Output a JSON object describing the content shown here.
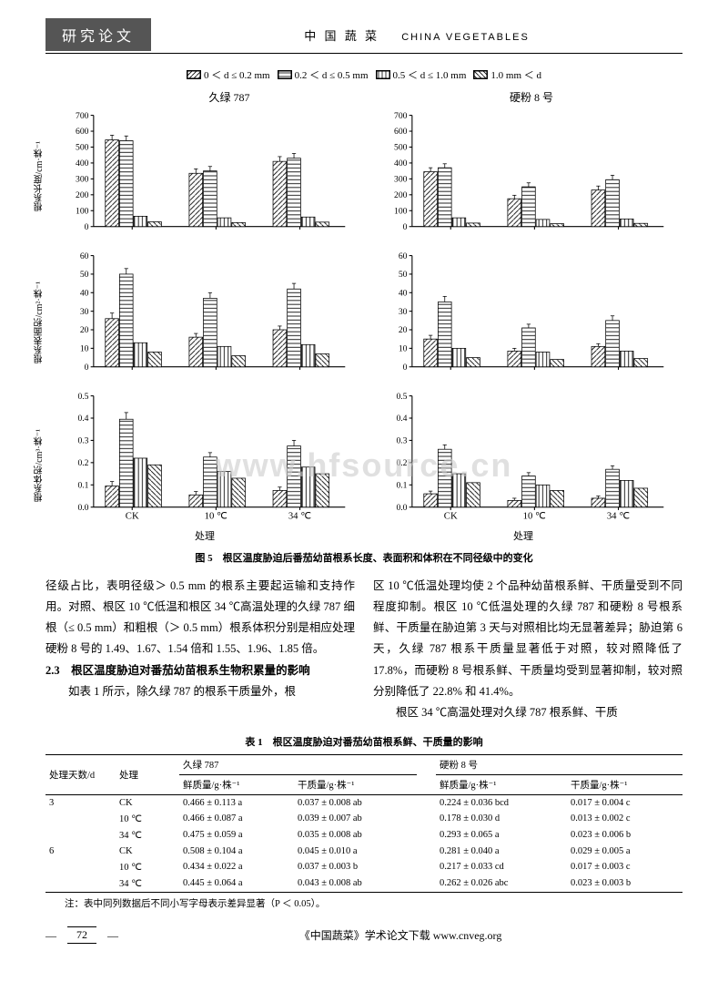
{
  "header": {
    "tab": "研究论文",
    "center_cn": "中 国 蔬 菜",
    "center_en": "CHINA VEGETABLES"
  },
  "legend": [
    {
      "label": "0 ＜ d ≤ 0.2 mm",
      "pattern": "diag1"
    },
    {
      "label": "0.2 ＜ d ≤ 0.5 mm",
      "pattern": "horiz"
    },
    {
      "label": "0.5 ＜ d ≤ 1.0 mm",
      "pattern": "vert"
    },
    {
      "label": "1.0 mm ＜ d",
      "pattern": "diag2"
    }
  ],
  "chart_cols": [
    "久绿 787",
    "硬粉 8 号"
  ],
  "xlabel": "处理",
  "categories": [
    "CK",
    "10 ℃",
    "34 ℃"
  ],
  "rows": [
    {
      "ylabel": "根系长度/cm·株⁻¹",
      "ylim": [
        0,
        700
      ],
      "ytick_step": 100,
      "panels": [
        {
          "series": [
            {
              "vals": [
                545,
                540
              ],
              "err": [
                30,
                30
              ]
            },
            {
              "vals": [
                335,
                350
              ],
              "err": [
                28,
                28
              ]
            },
            {
              "vals": [
                410,
                430
              ],
              "err": [
                30,
                30
              ]
            }
          ],
          "extras": [
            {
              "cat": 0,
              "vals": [
                65,
                30
              ]
            },
            {
              "cat": 1,
              "vals": [
                55,
                25
              ]
            },
            {
              "cat": 2,
              "vals": [
                60,
                28
              ]
            }
          ]
        },
        {
          "series": [
            {
              "vals": [
                345,
                370
              ],
              "err": [
                25,
                25
              ]
            },
            {
              "vals": [
                175,
                250
              ],
              "err": [
                22,
                25
              ]
            },
            {
              "vals": [
                230,
                295
              ],
              "err": [
                25,
                28
              ]
            }
          ],
          "extras": [
            {
              "cat": 0,
              "vals": [
                55,
                22
              ]
            },
            {
              "cat": 1,
              "vals": [
                45,
                18
              ]
            },
            {
              "cat": 2,
              "vals": [
                48,
                20
              ]
            }
          ]
        }
      ]
    },
    {
      "ylabel": "根系表面积/cm²·株⁻¹",
      "ylim": [
        0,
        60
      ],
      "ytick_step": 10,
      "panels": [
        {
          "series": [
            {
              "vals": [
                26,
                50
              ],
              "err": [
                3,
                3
              ]
            },
            {
              "vals": [
                16,
                37
              ],
              "err": [
                2,
                3
              ]
            },
            {
              "vals": [
                20,
                42
              ],
              "err": [
                2,
                3
              ]
            }
          ],
          "extras": [
            {
              "cat": 0,
              "vals": [
                13,
                8
              ]
            },
            {
              "cat": 1,
              "vals": [
                11,
                6
              ]
            },
            {
              "cat": 2,
              "vals": [
                12,
                7
              ]
            }
          ]
        },
        {
          "series": [
            {
              "vals": [
                15,
                35
              ],
              "err": [
                2,
                3
              ]
            },
            {
              "vals": [
                8.5,
                21
              ],
              "err": [
                1.5,
                2
              ]
            },
            {
              "vals": [
                11,
                25
              ],
              "err": [
                1.5,
                2.5
              ]
            }
          ],
          "extras": [
            {
              "cat": 0,
              "vals": [
                10,
                5
              ]
            },
            {
              "cat": 1,
              "vals": [
                8,
                4
              ]
            },
            {
              "cat": 2,
              "vals": [
                8.5,
                4.5
              ]
            }
          ]
        }
      ]
    },
    {
      "ylabel": "根系体积/cm³·株⁻¹",
      "ylim": [
        0,
        0.5
      ],
      "ytick_step": 0.1,
      "panels": [
        {
          "series": [
            {
              "vals": [
                0.095,
                0.395
              ],
              "err": [
                0.02,
                0.03
              ]
            },
            {
              "vals": [
                0.055,
                0.225
              ],
              "err": [
                0.015,
                0.02
              ]
            },
            {
              "vals": [
                0.075,
                0.275
              ],
              "err": [
                0.015,
                0.025
              ]
            }
          ],
          "extras": [
            {
              "cat": 0,
              "vals": [
                0.22,
                0.19
              ]
            },
            {
              "cat": 1,
              "vals": [
                0.16,
                0.13
              ]
            },
            {
              "cat": 2,
              "vals": [
                0.18,
                0.15
              ]
            }
          ]
        },
        {
          "series": [
            {
              "vals": [
                0.06,
                0.26
              ],
              "err": [
                0.012,
                0.02
              ]
            },
            {
              "vals": [
                0.03,
                0.14
              ],
              "err": [
                0.01,
                0.015
              ]
            },
            {
              "vals": [
                0.04,
                0.17
              ],
              "err": [
                0.01,
                0.016
              ]
            }
          ],
          "extras": [
            {
              "cat": 0,
              "vals": [
                0.15,
                0.11
              ]
            },
            {
              "cat": 1,
              "vals": [
                0.1,
                0.075
              ]
            },
            {
              "cat": 2,
              "vals": [
                0.12,
                0.085
              ]
            }
          ]
        }
      ]
    }
  ],
  "bar_style": {
    "width": 0.16,
    "stroke": "#000",
    "fill": "#ffffff"
  },
  "fig_caption": "图 5　根区温度胁迫后番茄幼苗根系长度、表面积和体积在不同径级中的变化",
  "watermark": "www.hfsource.cn",
  "body": {
    "left_p1": "径级占比，表明径级＞ 0.5 mm 的根系主要起运输和支持作用。对照、根区 10 ℃低温和根区 34 ℃高温处理的久绿 787 细根（≤ 0.5 mm）和粗根（＞ 0.5 mm）根系体积分别是相应处理硬粉 8 号的 1.49、1.67、1.54 倍和 1.55、1.96、1.85 倍。",
    "left_sec": "2.3　根区温度胁迫对番茄幼苗根系生物积累量的影响",
    "left_p2": "如表 1 所示，除久绿 787 的根系干质量外，根",
    "right_p1": "区 10 ℃低温处理均使 2 个品种幼苗根系鲜、干质量受到不同程度抑制。根区 10 ℃低温处理的久绿 787 和硬粉 8 号根系鲜、干质量在胁迫第 3 天与对照相比均无显著差异；胁迫第 6 天，久绿 787 根系干质量显著低于对照，较对照降低了 17.8%，而硬粉 8 号根系鲜、干质量均受到显著抑制，较对照分别降低了 22.8% 和 41.4%。",
    "right_p2": "根区 34 ℃高温处理对久绿 787 根系鲜、干质"
  },
  "table": {
    "caption": "表 1　根区温度胁迫对番茄幼苗根系鲜、干质量的影响",
    "head_row1": [
      "处理天数/d",
      "处理",
      "久绿 787",
      "硬粉 8 号"
    ],
    "head_row2": [
      "鲜质量/g·株⁻¹",
      "干质量/g·株⁻¹",
      "鲜质量/g·株⁻¹",
      "干质量/g·株⁻¹"
    ],
    "rows": [
      [
        "3",
        "CK",
        "0.466 ± 0.113 a",
        "0.037 ± 0.008 ab",
        "0.224 ± 0.036 bcd",
        "0.017 ± 0.004 c"
      ],
      [
        "",
        "10 ℃",
        "0.466 ± 0.087 a",
        "0.039 ± 0.007 ab",
        "0.178 ± 0.030 d",
        "0.013 ± 0.002 c"
      ],
      [
        "",
        "34 ℃",
        "0.475 ± 0.059 a",
        "0.035 ± 0.008 ab",
        "0.293 ± 0.065 a",
        "0.023 ± 0.006 b"
      ],
      [
        "6",
        "CK",
        "0.508 ± 0.104 a",
        "0.045 ± 0.010 a",
        "0.281 ± 0.040 a",
        "0.029 ± 0.005 a"
      ],
      [
        "",
        "10 ℃",
        "0.434 ± 0.022 a",
        "0.037 ± 0.003 b",
        "0.217 ± 0.033 cd",
        "0.017 ± 0.003 c"
      ],
      [
        "",
        "34 ℃",
        "0.445 ± 0.064 a",
        "0.043 ± 0.008 ab",
        "0.262 ± 0.026 abc",
        "0.023 ± 0.003 b"
      ]
    ],
    "note": "注：表中同列数据后不同小写字母表示差异显著（P ＜ 0.05）。"
  },
  "footer": {
    "page": "72",
    "text": "《中国蔬菜》学术论文下载 www.cnveg.org"
  }
}
